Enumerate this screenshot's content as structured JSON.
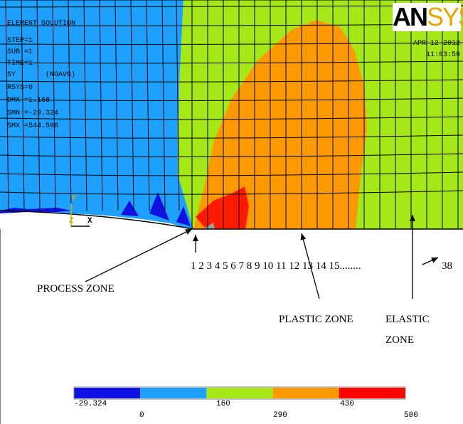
{
  "info": {
    "title": "ELEMENT SOLUTION",
    "lines": [
      "STEP=1",
      "SUB =1",
      "TIME=1",
      "SY       (NOAVG)",
      "RSYS=0",
      "DMX =1.168",
      "SMN =-29.324",
      "SMX =544.596"
    ]
  },
  "logo": {
    "left": "AN",
    "right": "SYS"
  },
  "date": "APR 12 2012",
  "time": "11:03:59",
  "triad": {
    "y": "Y",
    "z": "Z",
    "x": "X"
  },
  "annotations": {
    "element_numbers": "1 2 3 4 5 6 7 8 9 10 11 12 13 14 15........",
    "end_number": "38",
    "process_zone": "PROCESS ZONE",
    "plastic_zone": "PLASTIC ZONE",
    "elastic_zone_line1": "ELASTIC",
    "elastic_zone_line2": "ZONE"
  },
  "legend": {
    "colors": [
      "#1010e0",
      "#1ea0ff",
      "#a6e817",
      "#ff9900",
      "#ff0000"
    ],
    "bottom_values": [
      "-29.324",
      "160",
      "430"
    ],
    "top_values": [
      "0",
      "290",
      "500"
    ]
  },
  "zone_colors": {
    "blue": "#1ea0ff",
    "green": "#a6e817",
    "orange": "#ff9900",
    "red": "#ff1a00",
    "darkblue": "#1010e0",
    "grey": "#a0a0a0"
  }
}
